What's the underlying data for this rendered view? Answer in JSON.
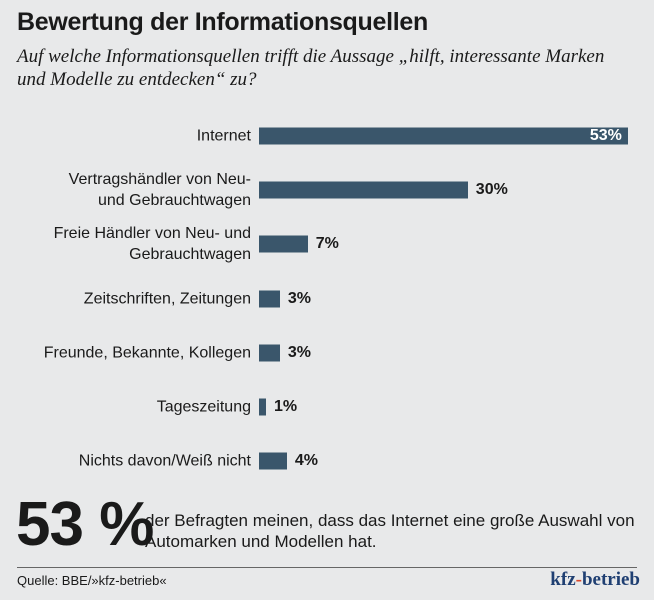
{
  "header": {
    "title": "Bewertung der Informationsquellen",
    "subtitle": "Auf welche Informationsquellen trifft die Aussage „hilft, interessante Marken und Modelle zu entdecken“ zu?"
  },
  "chart_data": {
    "type": "bar",
    "orientation": "horizontal",
    "categories": [
      "Internet",
      "Vertragshändler von Neu-\nund Gebrauchtwagen",
      "Freie Händler von Neu- und\nGebrauchtwagen",
      "Zeitschriften, Zeitungen",
      "Freunde, Bekannte, Kollegen",
      "Tageszeitung",
      "Nichts davon/Weiß nicht"
    ],
    "values": [
      53,
      30,
      7,
      3,
      3,
      1,
      4
    ],
    "value_labels": [
      "53%",
      "30%",
      "7%",
      "3%",
      "3%",
      "1%",
      "4%"
    ],
    "unit": "%",
    "bar_color": "#3a566b",
    "grid": false
  },
  "highlight": {
    "number": "53 %",
    "text": "der Befragten meinen, dass das Internet eine große Auswahl von Automarken und Modellen hat."
  },
  "footer": {
    "source": "Quelle: BBE/»kfz-betrieb«",
    "logo": "kfz-betrieb"
  }
}
